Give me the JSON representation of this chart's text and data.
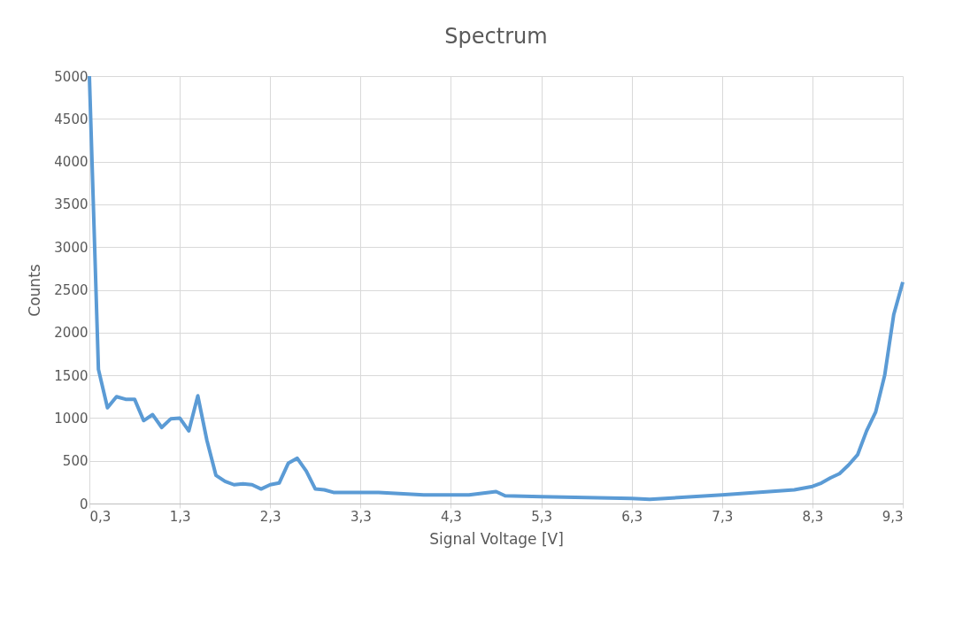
{
  "chart_data": {
    "type": "line",
    "title": "Spectrum",
    "xlabel": "Signal Voltage [V]",
    "ylabel": "Counts",
    "x": [
      0.3,
      0.4,
      0.5,
      0.6,
      0.7,
      0.8,
      0.9,
      1.0,
      1.1,
      1.2,
      1.3,
      1.4,
      1.5,
      1.6,
      1.7,
      1.8,
      1.9,
      2.0,
      2.1,
      2.2,
      2.3,
      2.4,
      2.5,
      2.6,
      2.7,
      2.8,
      2.9,
      3.0,
      3.5,
      4.0,
      4.5,
      4.8,
      4.9,
      5.3,
      6.3,
      6.5,
      7.3,
      8.1,
      8.3,
      8.4,
      8.5,
      8.6,
      8.7,
      8.8,
      8.9,
      9.0,
      9.1,
      9.2,
      9.3
    ],
    "series": [
      {
        "color": "#5b9bd5",
        "values": [
          5000,
          1570,
          1120,
          1250,
          1220,
          1220,
          970,
          1040,
          890,
          990,
          1000,
          850,
          1260,
          740,
          330,
          260,
          220,
          230,
          220,
          170,
          220,
          240,
          470,
          530,
          380,
          170,
          160,
          130,
          130,
          100,
          100,
          140,
          90,
          80,
          60,
          50,
          100,
          160,
          200,
          240,
          300,
          350,
          450,
          570,
          850,
          1070,
          1500,
          2210,
          2590
        ]
      }
    ],
    "xlim": [
      0.3,
      9.3
    ],
    "xticks": [
      {
        "value": 0.3,
        "label": "0,3"
      },
      {
        "value": 1.3,
        "label": "1,3"
      },
      {
        "value": 2.3,
        "label": "2,3"
      },
      {
        "value": 3.3,
        "label": "3,3"
      },
      {
        "value": 4.3,
        "label": "4,3"
      },
      {
        "value": 5.3,
        "label": "5,3"
      },
      {
        "value": 6.3,
        "label": "6,3"
      },
      {
        "value": 7.3,
        "label": "7,3"
      },
      {
        "value": 8.3,
        "label": "8,3"
      },
      {
        "value": 9.3,
        "label": "9,3"
      }
    ],
    "ylim": [
      0,
      5000
    ],
    "yticks": [
      0,
      500,
      1000,
      1500,
      2000,
      2500,
      3000,
      3500,
      4000,
      4500,
      5000
    ],
    "grid": true,
    "legend": false,
    "line_style": "solid"
  }
}
